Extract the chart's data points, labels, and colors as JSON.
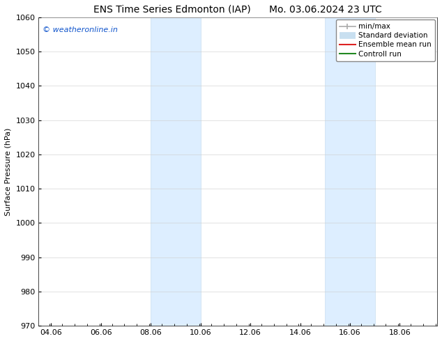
{
  "title_left": "ENS Time Series Edmonton (IAP)",
  "title_right": "Mo. 03.06.2024 23 UTC",
  "ylabel": "Surface Pressure (hPa)",
  "ylim": [
    970,
    1060
  ],
  "yticks": [
    970,
    980,
    990,
    1000,
    1010,
    1020,
    1030,
    1040,
    1050,
    1060
  ],
  "xlim_start": 3.56,
  "xlim_end": 19.56,
  "xtick_labels": [
    "04.06",
    "06.06",
    "08.06",
    "10.06",
    "12.06",
    "14.06",
    "16.06",
    "18.06"
  ],
  "xtick_positions": [
    4.06,
    6.06,
    8.06,
    10.06,
    12.06,
    14.06,
    16.06,
    18.06
  ],
  "shaded_bands": [
    {
      "x_start": 8.06,
      "x_end": 10.06
    },
    {
      "x_start": 15.06,
      "x_end": 17.06
    }
  ],
  "shaded_color": "#ddeeff",
  "shaded_edge_color": "#c8dff0",
  "watermark_text": "© weatheronline.in",
  "watermark_color": "#1155cc",
  "legend_items": [
    {
      "label": "min/max",
      "color": "#aaaaaa",
      "lw": 1.2,
      "style": "caps"
    },
    {
      "label": "Standard deviation",
      "color": "#c8dff0",
      "lw": 7,
      "style": "thick"
    },
    {
      "label": "Ensemble mean run",
      "color": "#dd2222",
      "lw": 1.5,
      "style": "line"
    },
    {
      "label": "Controll run",
      "color": "#228822",
      "lw": 1.5,
      "style": "line"
    }
  ],
  "background_color": "#ffffff",
  "grid_color": "#cccccc",
  "title_fontsize": 10,
  "ylabel_fontsize": 8,
  "tick_fontsize": 8,
  "watermark_fontsize": 8,
  "legend_fontsize": 7.5
}
